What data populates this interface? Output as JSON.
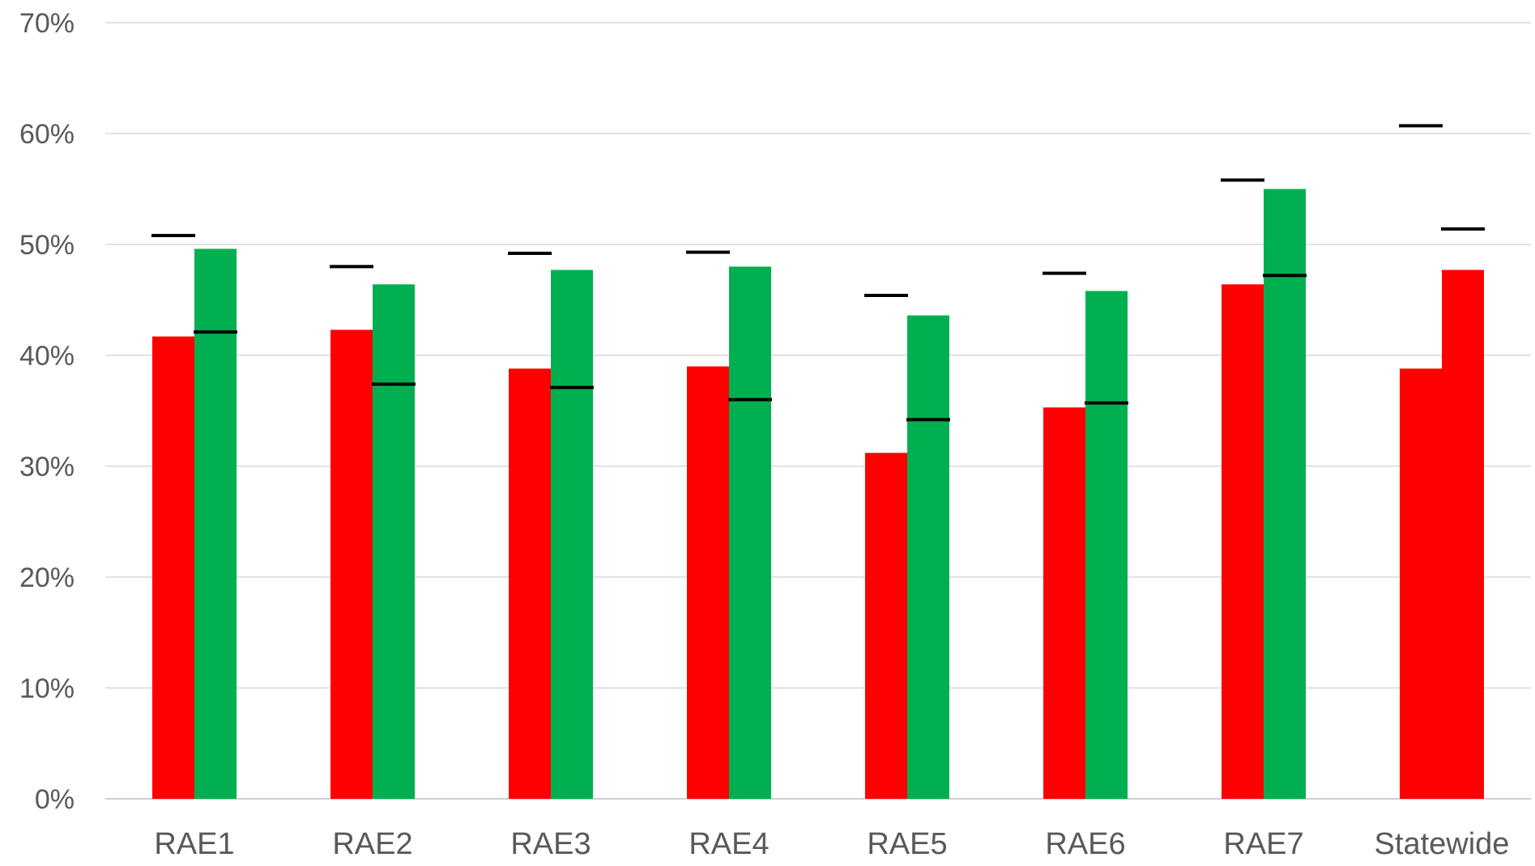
{
  "chart_data": {
    "type": "bar",
    "categories": [
      "RAE1",
      "RAE2",
      "RAE3",
      "RAE4",
      "RAE5",
      "RAE6",
      "RAE7",
      "Statewide"
    ],
    "series": [
      {
        "color": "#ff0000",
        "values": [
          41.7,
          42.3,
          38.8,
          39.0,
          31.2,
          35.3,
          46.4,
          38.8
        ]
      },
      {
        "color": "#00b050",
        "values": [
          49.6,
          46.4,
          47.7,
          48.0,
          43.6,
          45.8,
          55.0,
          47.7
        ]
      }
    ],
    "markers": {
      "color": "#000000",
      "left": [
        50.8,
        48.0,
        49.2,
        49.3,
        45.4,
        47.4,
        55.8,
        60.7
      ],
      "right": [
        42.1,
        37.4,
        37.1,
        36.0,
        34.2,
        35.7,
        47.2,
        51.4
      ]
    },
    "yaxis": {
      "min": 0,
      "max": 70,
      "ticks": [
        "0%",
        "10%",
        "20%",
        "30%",
        "40%",
        "50%",
        "60%",
        "70%"
      ]
    },
    "grid": true,
    "legend": "none",
    "title": "",
    "xlabel": "",
    "ylabel": ""
  }
}
